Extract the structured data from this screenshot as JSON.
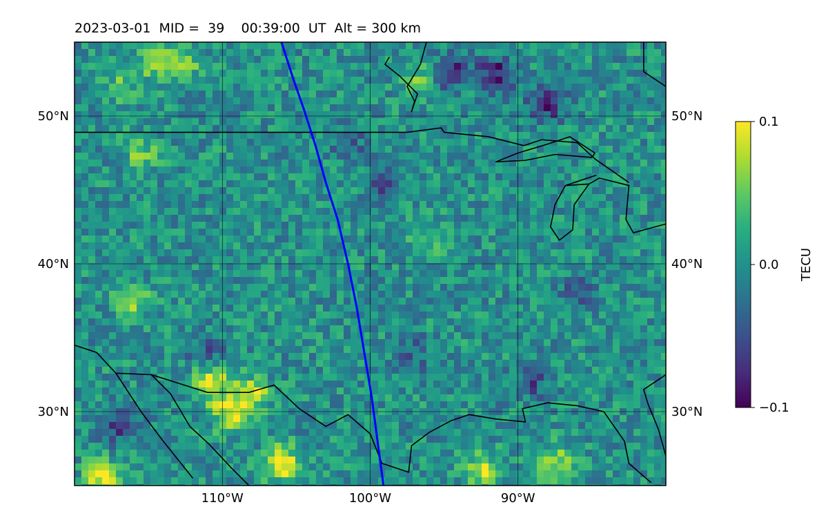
{
  "title": "2023-03-01  MID =  39    00:39:00  UT  Alt = 300 km",
  "map": {
    "lon_range": [
      -120,
      -80
    ],
    "lat_range": [
      25,
      55
    ],
    "lat_ticks": [
      {
        "value": 50,
        "label": "50°N"
      },
      {
        "value": 40,
        "label": "40°N"
      },
      {
        "value": 30,
        "label": "30°N"
      }
    ],
    "lon_ticks": [
      {
        "value": -110,
        "label": "110°W"
      },
      {
        "value": -100,
        "label": "100°W"
      },
      {
        "value": -90,
        "label": "90°W"
      }
    ],
    "grid": true,
    "colormap": "viridis",
    "background_color": "#2f7d8b",
    "track_color": "#0000ff",
    "coastline_color": "#000000"
  },
  "track": [
    {
      "lon": -106.0,
      "lat": 55.0
    },
    {
      "lon": -105.2,
      "lat": 52.5
    },
    {
      "lon": -104.5,
      "lat": 50.5
    },
    {
      "lon": -103.7,
      "lat": 48.0
    },
    {
      "lon": -103.0,
      "lat": 45.5
    },
    {
      "lon": -102.2,
      "lat": 43.0
    },
    {
      "lon": -101.5,
      "lat": 40.0
    },
    {
      "lon": -100.9,
      "lat": 37.0
    },
    {
      "lon": -100.4,
      "lat": 34.0
    },
    {
      "lon": -99.9,
      "lat": 31.0
    },
    {
      "lon": -99.5,
      "lat": 28.0
    },
    {
      "lon": -99.1,
      "lat": 25.0
    }
  ],
  "blobs": [
    {
      "lon": -114.5,
      "lat": 53.5,
      "v": 0.06
    },
    {
      "lon": -112.5,
      "lat": 53.8,
      "v": 0.05
    },
    {
      "lon": -117,
      "lat": 52.0,
      "v": 0.04
    },
    {
      "lon": -115.5,
      "lat": 47.5,
      "v": 0.05
    },
    {
      "lon": -116.0,
      "lat": 37.5,
      "v": 0.06
    },
    {
      "lon": -110.7,
      "lat": 32.0,
      "v": 0.09
    },
    {
      "lon": -109.5,
      "lat": 30.0,
      "v": 0.09
    },
    {
      "lon": -108.0,
      "lat": 31.2,
      "v": 0.08
    },
    {
      "lon": -106.0,
      "lat": 26.5,
      "v": 0.1
    },
    {
      "lon": -118.0,
      "lat": 25.5,
      "v": 0.1
    },
    {
      "lon": -92.5,
      "lat": 26.0,
      "v": 0.08
    },
    {
      "lon": -87.5,
      "lat": 26.5,
      "v": 0.07
    },
    {
      "lon": -96.0,
      "lat": 41.5,
      "v": 0.04
    },
    {
      "lon": -96.8,
      "lat": 52.5,
      "v": 0.05
    },
    {
      "lon": -91.5,
      "lat": 52.8,
      "v": -0.09
    },
    {
      "lon": -88.0,
      "lat": 51.0,
      "v": -0.09
    },
    {
      "lon": -94.5,
      "lat": 53.0,
      "v": -0.08
    },
    {
      "lon": -101.5,
      "lat": 48.2,
      "v": -0.04
    },
    {
      "lon": -99.0,
      "lat": 45.5,
      "v": -0.05
    },
    {
      "lon": -111.0,
      "lat": 34.0,
      "v": -0.05
    },
    {
      "lon": -117.0,
      "lat": 29.0,
      "v": -0.06
    },
    {
      "lon": -97.0,
      "lat": 34.0,
      "v": -0.04
    },
    {
      "lon": -86.0,
      "lat": 38.0,
      "v": -0.04
    },
    {
      "lon": -89.0,
      "lat": 32.0,
      "v": -0.05
    }
  ],
  "coastlines": [
    [
      [
        -120,
        48.9
      ],
      [
        -97.5,
        48.9
      ],
      [
        -95.2,
        49.2
      ],
      [
        -95.0,
        48.9
      ],
      [
        -92.0,
        48.6
      ],
      [
        -89.6,
        48.0
      ],
      [
        -88.4,
        48.4
      ],
      [
        -86.0,
        48.2
      ],
      [
        -84.8,
        47.1
      ],
      [
        -82.5,
        45.5
      ]
    ],
    [
      [
        -85.0,
        47.2
      ],
      [
        -87.5,
        47.4
      ],
      [
        -89.5,
        47.0
      ],
      [
        -91.5,
        46.9
      ],
      [
        -90.0,
        47.5
      ],
      [
        -88.0,
        48.1
      ],
      [
        -86.5,
        48.6
      ],
      [
        -84.8,
        47.5
      ],
      [
        -85.0,
        47.2
      ]
    ],
    [
      [
        -86.8,
        45.3
      ],
      [
        -87.5,
        44.0
      ],
      [
        -87.8,
        42.5
      ],
      [
        -87.2,
        41.6
      ],
      [
        -86.3,
        42.3
      ],
      [
        -86.2,
        44.0
      ],
      [
        -85.2,
        45.4
      ],
      [
        -84.5,
        45.8
      ],
      [
        -82.5,
        45.3
      ],
      [
        -82.7,
        43.0
      ],
      [
        -82.2,
        42.1
      ],
      [
        -80.0,
        42.7
      ]
    ],
    [
      [
        -84.7,
        46.0
      ],
      [
        -86.8,
        45.3
      ],
      [
        -85.2,
        45.4
      ]
    ],
    [
      [
        -96.2,
        55.0
      ],
      [
        -96.6,
        53.5
      ],
      [
        -97.5,
        52.0
      ],
      [
        -97.0,
        51.0
      ],
      [
        -97.2,
        50.3
      ],
      [
        -96.8,
        51.5
      ],
      [
        -98.0,
        52.7
      ],
      [
        -99.0,
        53.5
      ],
      [
        -98.7,
        54.0
      ]
    ],
    [
      [
        -81.5,
        55.0
      ],
      [
        -81.5,
        53.0
      ],
      [
        -80.0,
        52.0
      ]
    ],
    [
      [
        -120,
        34.5
      ],
      [
        -118.5,
        34.0
      ],
      [
        -117.2,
        32.6
      ],
      [
        -114.8,
        32.5
      ],
      [
        -111.0,
        31.3
      ],
      [
        -108.2,
        31.3
      ],
      [
        -106.5,
        31.8
      ],
      [
        -104.8,
        30.2
      ],
      [
        -103.0,
        29.0
      ],
      [
        -101.5,
        29.8
      ],
      [
        -100.0,
        28.5
      ],
      [
        -99.2,
        26.5
      ],
      [
        -97.4,
        25.9
      ],
      [
        -97.2,
        27.7
      ],
      [
        -96.0,
        28.6
      ],
      [
        -94.5,
        29.4
      ],
      [
        -93.3,
        29.8
      ],
      [
        -91.5,
        29.5
      ],
      [
        -89.5,
        29.3
      ],
      [
        -89.7,
        30.2
      ],
      [
        -88.0,
        30.6
      ],
      [
        -86.0,
        30.4
      ],
      [
        -84.2,
        30.0
      ],
      [
        -82.8,
        28.0
      ],
      [
        -82.5,
        26.5
      ],
      [
        -81.0,
        25.2
      ]
    ],
    [
      [
        -80.0,
        27.0
      ],
      [
        -80.5,
        28.8
      ],
      [
        -81.2,
        30.5
      ],
      [
        -81.5,
        31.5
      ],
      [
        -80.0,
        32.5
      ]
    ],
    [
      [
        -117.2,
        32.6
      ],
      [
        -115.5,
        30.0
      ],
      [
        -114.0,
        28.0
      ],
      [
        -112.0,
        25.5
      ]
    ],
    [
      [
        -114.8,
        32.5
      ],
      [
        -113.5,
        31.2
      ],
      [
        -112.2,
        29.0
      ],
      [
        -110.9,
        27.8
      ],
      [
        -109.4,
        26.2
      ],
      [
        -108.2,
        25.0
      ]
    ]
  ],
  "colorbar": {
    "label": "TECU",
    "min": -0.1,
    "max": 0.1,
    "ticks": [
      {
        "value": 0.1,
        "label": "0.1"
      },
      {
        "value": 0.0,
        "label": "0.0"
      },
      {
        "value": -0.1,
        "label": "−0.1"
      }
    ]
  }
}
